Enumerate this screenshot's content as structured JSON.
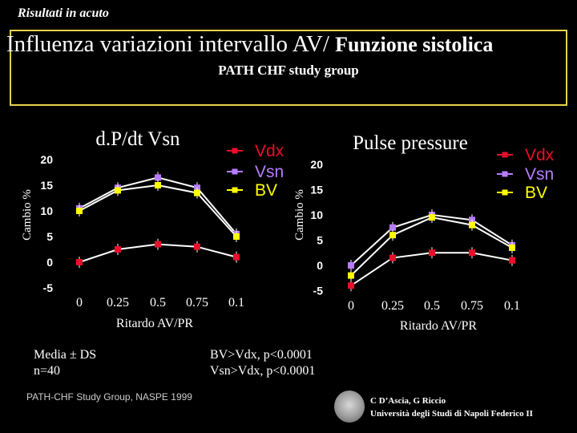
{
  "header": {
    "kicker": "Risultati in acuto"
  },
  "title": {
    "main": "Influenza variazioni intervallo AV/",
    "sub": "Funzione sistolica",
    "study": "PATH CHF study group"
  },
  "colors": {
    "Vdx": "#e8102a",
    "Vsn": "#b77cff",
    "BV": "#ffff00",
    "line": "#ffffff",
    "border": "#e6d24a"
  },
  "chart_data": [
    {
      "type": "line",
      "title": "d.P/dt Vsn",
      "ylabel": "Cambio %",
      "xlabel": "Ritardo AV/PR",
      "categories": [
        "0",
        "0.25",
        "0.5",
        "0.75",
        "0.1"
      ],
      "ylim": [
        -5,
        20
      ],
      "yticks": [
        "20",
        "15",
        "10",
        "5",
        "0",
        "-5"
      ],
      "legend": "top-right",
      "series": [
        {
          "name": "Vdx",
          "values": [
            0,
            2.5,
            3.5,
            3,
            1
          ]
        },
        {
          "name": "Vsn",
          "values": [
            10.5,
            14.5,
            16.5,
            14.5,
            5.5
          ]
        },
        {
          "name": "BV",
          "values": [
            10,
            14,
            15,
            13.5,
            5
          ]
        }
      ]
    },
    {
      "type": "line",
      "title": "Pulse pressure",
      "ylabel": "Cambio %",
      "xlabel": "Ritardo AV/PR",
      "categories": [
        "0",
        "0.25",
        "0.5",
        "0.75",
        "0.1"
      ],
      "ylim": [
        -5,
        20
      ],
      "yticks": [
        "20",
        "15",
        "10",
        "5",
        "0",
        "-5"
      ],
      "legend": "top-right",
      "series": [
        {
          "name": "Vdx",
          "values": [
            -4,
            1.5,
            2.5,
            2.5,
            1
          ]
        },
        {
          "name": "Vsn",
          "values": [
            0,
            7.5,
            10,
            9,
            4
          ]
        },
        {
          "name": "BV",
          "values": [
            -2,
            6,
            9.5,
            8,
            3.5
          ]
        }
      ]
    }
  ],
  "notes": {
    "stats_line1": "Media ± DS",
    "stats_line2": "n=40",
    "sig_line1": "BV>Vdx,  p<0.0001",
    "sig_line2": "Vsn>Vdx, p<0.0001",
    "source": "PATH-CHF Study Group, NASPE 1999",
    "credit_line1": "C D’Ascia, G Riccio",
    "credit_line2": "Università degli Studi di Napoli Federico II"
  }
}
